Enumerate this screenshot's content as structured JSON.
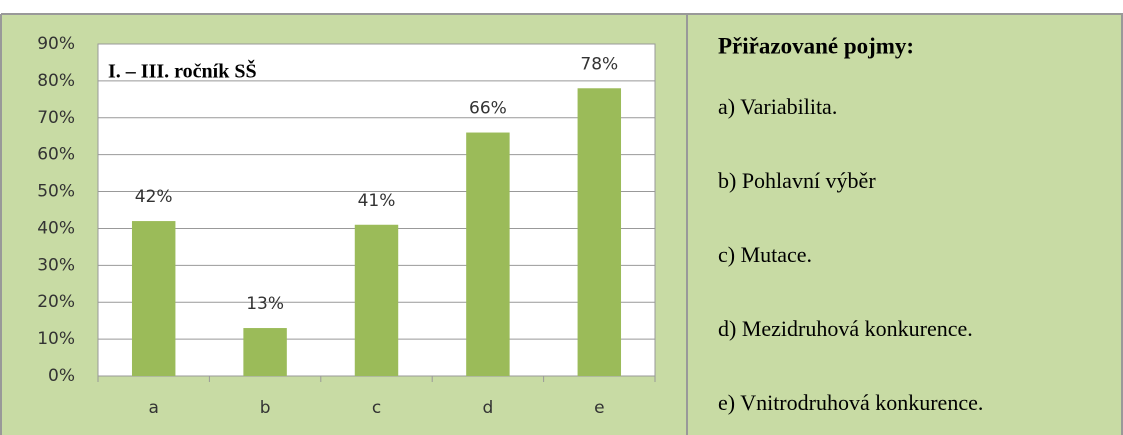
{
  "chart_data": {
    "type": "bar",
    "title": "I. – III. ročník SŠ",
    "categories": [
      "a",
      "b",
      "c",
      "d",
      "e"
    ],
    "values": [
      42,
      13,
      41,
      66,
      78
    ],
    "value_labels": [
      "42%",
      "13%",
      "41%",
      "66%",
      "78%"
    ],
    "color": "#9bbb59",
    "ylim": [
      0,
      90
    ],
    "yticks": [
      {
        "value": 0,
        "label": "0%"
      },
      {
        "value": 10,
        "label": "10%"
      },
      {
        "value": 20,
        "label": "20%"
      },
      {
        "value": 30,
        "label": "30%"
      },
      {
        "value": 40,
        "label": "40%"
      },
      {
        "value": 50,
        "label": "50%"
      },
      {
        "value": 60,
        "label": "60%"
      },
      {
        "value": 70,
        "label": "70%"
      },
      {
        "value": 80,
        "label": "80%"
      },
      {
        "value": 90,
        "label": "90%"
      }
    ],
    "grid": true
  },
  "panel": {
    "title": "Přiřazované pojmy:",
    "items": [
      "a) Variabilita.",
      "b) Pohlavní výběr",
      "c) Mutace.",
      "d) Mezidruhová konkurence.",
      "e) Vnitrodruhová konkurence."
    ]
  }
}
